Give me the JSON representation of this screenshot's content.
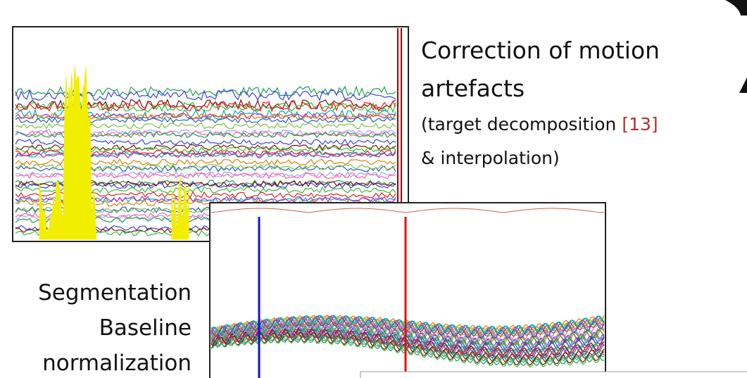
{
  "slide": {
    "correction": {
      "line1": "Correction of motion",
      "line2": "artefacts",
      "line3": "(target decomposition ",
      "ref": "[13]",
      "line4": "& interpolation)"
    },
    "steps": {
      "line1": "Segmentation",
      "line2": "Baseline",
      "line3": "normalization"
    }
  }
}
